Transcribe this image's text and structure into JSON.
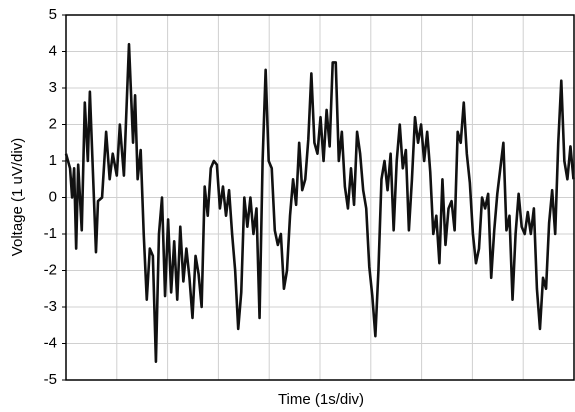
{
  "chart_data": {
    "type": "line",
    "x_label": "Time (1s/div)",
    "y_label": "Voltage (1 uV/div)",
    "xlim": [
      0,
      10
    ],
    "xticks": [
      0,
      1,
      2,
      3,
      4,
      5,
      6,
      7,
      8,
      9,
      10
    ],
    "ylim": [
      -5,
      5
    ],
    "yticks": [
      -5,
      -4,
      -3,
      -2,
      -1,
      0,
      1,
      2,
      3,
      4,
      5
    ],
    "grid": true,
    "x": [
      0,
      0.08,
      0.12,
      0.16,
      0.2,
      0.24,
      0.31,
      0.37,
      0.43,
      0.47,
      0.53,
      0.59,
      0.63,
      0.71,
      0.79,
      0.86,
      0.92,
      1.0,
      1.06,
      1.14,
      1.24,
      1.32,
      1.36,
      1.41,
      1.47,
      1.53,
      1.59,
      1.65,
      1.71,
      1.77,
      1.83,
      1.89,
      1.95,
      2.01,
      2.07,
      2.13,
      2.19,
      2.25,
      2.31,
      2.37,
      2.43,
      2.49,
      2.55,
      2.61,
      2.67,
      2.73,
      2.79,
      2.85,
      2.91,
      2.97,
      3.03,
      3.09,
      3.15,
      3.21,
      3.27,
      3.33,
      3.39,
      3.45,
      3.51,
      3.57,
      3.63,
      3.69,
      3.75,
      3.81,
      3.87,
      3.93,
      3.99,
      4.05,
      4.11,
      4.17,
      4.23,
      4.29,
      4.35,
      4.41,
      4.47,
      4.53,
      4.59,
      4.65,
      4.71,
      4.77,
      4.83,
      4.89,
      4.95,
      5.01,
      5.07,
      5.13,
      5.19,
      5.25,
      5.31,
      5.37,
      5.43,
      5.49,
      5.55,
      5.61,
      5.67,
      5.73,
      5.79,
      5.85,
      5.91,
      5.97,
      6.03,
      6.09,
      6.15,
      6.21,
      6.27,
      6.33,
      6.39,
      6.45,
      6.51,
      6.57,
      6.63,
      6.69,
      6.75,
      6.81,
      6.87,
      6.93,
      6.99,
      7.05,
      7.11,
      7.17,
      7.23,
      7.29,
      7.35,
      7.41,
      7.47,
      7.53,
      7.59,
      7.65,
      7.71,
      7.77,
      7.83,
      7.89,
      7.95,
      8.01,
      8.07,
      8.13,
      8.19,
      8.25,
      8.31,
      8.37,
      8.43,
      8.49,
      8.55,
      8.61,
      8.67,
      8.73,
      8.79,
      8.85,
      8.91,
      8.97,
      9.03,
      9.09,
      9.15,
      9.21,
      9.27,
      9.33,
      9.39,
      9.45,
      9.51,
      9.57,
      9.63,
      9.69,
      9.75,
      9.81,
      9.87,
      9.93,
      9.99
    ],
    "series": [
      {
        "color": "#111111",
        "values": [
          1.2,
          0.8,
          0,
          0.8,
          -1.4,
          0.9,
          -0.9,
          2.6,
          1.0,
          2.9,
          0.7,
          -1.5,
          -0.1,
          0,
          1.8,
          0.5,
          1.2,
          0.6,
          2.0,
          0.6,
          4.2,
          1.5,
          2.8,
          0.5,
          1.3,
          -1.0,
          -2.8,
          -1.4,
          -1.6,
          -4.5,
          -1.0,
          0.0,
          -2.7,
          -0.6,
          -2.6,
          -1.2,
          -2.8,
          -0.8,
          -2.3,
          -1.4,
          -2.2,
          -3.3,
          -1.6,
          -2.1,
          -3.0,
          0.3,
          -0.5,
          0.8,
          1.0,
          0.9,
          -0.3,
          0.3,
          -0.5,
          0.2,
          -1.0,
          -2.0,
          -3.6,
          -2.6,
          0.0,
          -0.8,
          0.0,
          -1.0,
          -0.3,
          -3.3,
          1.0,
          3.5,
          1.0,
          0.8,
          -0.9,
          -1.3,
          -1.0,
          -2.5,
          -2.0,
          -0.5,
          0.5,
          -0.2,
          1.5,
          0.2,
          0.5,
          1.6,
          3.4,
          1.5,
          1.2,
          2.2,
          1.0,
          2.4,
          1.4,
          3.7,
          3.7,
          1.0,
          1.8,
          0.3,
          -0.3,
          0.8,
          -0.2,
          1.8,
          1.2,
          0.2,
          -0.3,
          -1.9,
          -2.7,
          -3.8,
          -2.0,
          0.5,
          1.0,
          0.2,
          1.2,
          -0.9,
          1.0,
          2.0,
          0.8,
          1.3,
          -0.9,
          0.5,
          2.2,
          1.5,
          2.0,
          1.0,
          1.8,
          0.7,
          -1.0,
          -0.5,
          -1.8,
          0.5,
          -1.3,
          -0.3,
          -0.1,
          -0.9,
          1.8,
          1.5,
          2.6,
          1.2,
          0.4,
          -1.0,
          -1.8,
          -1.4,
          0.0,
          -0.3,
          0.1,
          -2.2,
          -0.9,
          0.1,
          0.8,
          1.5,
          -0.9,
          -0.5,
          -2.8,
          -1.0,
          0.1,
          -0.8,
          -1.0,
          -0.4,
          -1.0,
          -0.3,
          -2.5,
          -3.6,
          -2.2,
          -2.5,
          -0.7,
          0.2,
          -1.0,
          1.5,
          3.2,
          1.0,
          0.5,
          1.4,
          0.5
        ]
      }
    ]
  }
}
